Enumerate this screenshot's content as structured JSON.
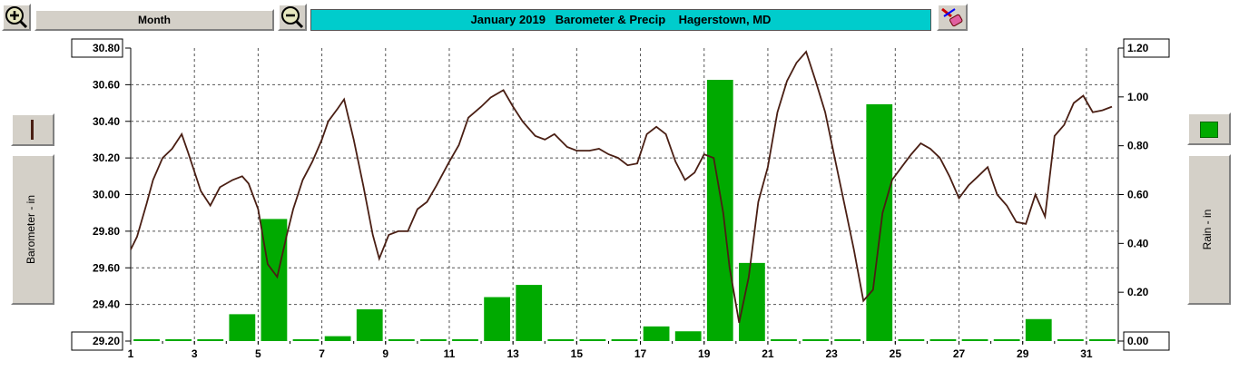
{
  "toolbar": {
    "period_label": "Month",
    "title": "January 2019   Barometer & Precip    Hagerstown, MD"
  },
  "icons": [
    "zoom-in-icon",
    "zoom-out-icon",
    "eraser-icon",
    "legend-line-swatch",
    "legend-bar-swatch"
  ],
  "colors": {
    "line": "#4a1f14",
    "bars": "#00aa00",
    "title_bg": "#00cccc",
    "panel": "#d4d0c8"
  },
  "left_axis_label": "Barometer - in",
  "right_axis_label": "Rain - in",
  "chart_data": {
    "type": "bar+line",
    "title": "January 2019   Barometer & Precip    Hagerstown, MD",
    "x_ticks": [
      "1",
      "3",
      "5",
      "7",
      "9",
      "11",
      "13",
      "15",
      "17",
      "19",
      "21",
      "23",
      "25",
      "27",
      "29",
      "31"
    ],
    "ylabel_left": "Barometer - in",
    "ylabel_right": "Rain - in",
    "y_left_ticks": [
      "29.20",
      "29.40",
      "29.60",
      "29.80",
      "30.00",
      "30.20",
      "30.40",
      "30.60",
      "30.80"
    ],
    "y_right_ticks": [
      "0.00",
      "0.20",
      "0.40",
      "0.60",
      "0.80",
      "1.00",
      "1.20"
    ],
    "y_left_range": [
      29.2,
      30.8
    ],
    "y_right_range": [
      0,
      1.2
    ],
    "x_range": [
      1,
      32
    ],
    "grid": true,
    "series": [
      {
        "name": "Rain - in",
        "type": "bar",
        "x": [
          1,
          2,
          3,
          4,
          5,
          6,
          7,
          8,
          9,
          10,
          11,
          12,
          13,
          14,
          15,
          16,
          17,
          18,
          19,
          20,
          21,
          22,
          23,
          24,
          25,
          26,
          27,
          28,
          29,
          30,
          31
        ],
        "values": [
          0,
          0,
          0,
          0.11,
          0.5,
          0,
          0.02,
          0.13,
          0,
          0,
          0,
          0.18,
          0.23,
          0,
          0,
          0,
          0.06,
          0.04,
          1.07,
          0.32,
          0,
          0,
          0,
          0.97,
          0,
          0,
          0,
          0,
          0.09,
          0,
          0
        ]
      },
      {
        "name": "Barometer - in",
        "type": "line",
        "x": [
          1.0,
          1.2,
          1.5,
          1.7,
          2.0,
          2.3,
          2.6,
          2.8,
          3.2,
          3.5,
          3.8,
          4.2,
          4.5,
          4.7,
          5.0,
          5.3,
          5.6,
          5.9,
          6.1,
          6.4,
          6.7,
          7.0,
          7.2,
          7.5,
          7.7,
          8.0,
          8.3,
          8.6,
          8.8,
          9.1,
          9.4,
          9.7,
          10.0,
          10.3,
          10.6,
          11.0,
          11.3,
          11.6,
          12.0,
          12.3,
          12.7,
          13.0,
          13.3,
          13.7,
          14.0,
          14.3,
          14.7,
          15.0,
          15.4,
          15.7,
          16.0,
          16.3,
          16.6,
          16.9,
          17.2,
          17.5,
          17.8,
          18.1,
          18.4,
          18.7,
          19.0,
          19.3,
          19.6,
          19.8,
          20.1,
          20.4,
          20.7,
          21.0,
          21.3,
          21.6,
          21.9,
          22.2,
          22.5,
          22.8,
          23.1,
          23.4,
          23.7,
          24.0,
          24.3,
          24.6,
          24.9,
          25.2,
          25.5,
          25.8,
          26.1,
          26.4,
          26.7,
          27.0,
          27.3,
          27.6,
          27.9,
          28.2,
          28.5,
          28.8,
          29.1,
          29.4,
          29.7,
          30.0,
          30.3,
          30.6,
          30.9,
          31.2,
          31.5,
          31.8
        ],
        "values": [
          29.7,
          29.77,
          29.95,
          30.08,
          30.2,
          30.25,
          30.33,
          30.23,
          30.02,
          29.94,
          30.04,
          30.08,
          30.1,
          30.06,
          29.92,
          29.62,
          29.55,
          29.78,
          29.92,
          30.08,
          30.18,
          30.3,
          30.4,
          30.47,
          30.52,
          30.3,
          30.05,
          29.78,
          29.65,
          29.78,
          29.8,
          29.8,
          29.92,
          29.96,
          30.05,
          30.18,
          30.27,
          30.42,
          30.48,
          30.53,
          30.57,
          30.48,
          30.4,
          30.32,
          30.3,
          30.33,
          30.26,
          30.24,
          30.24,
          30.25,
          30.22,
          30.2,
          30.16,
          30.17,
          30.33,
          30.37,
          30.33,
          30.18,
          30.08,
          30.12,
          30.22,
          30.2,
          29.9,
          29.6,
          29.3,
          29.55,
          29.96,
          30.15,
          30.45,
          30.62,
          30.72,
          30.78,
          30.62,
          30.45,
          30.2,
          29.95,
          29.7,
          29.42,
          29.48,
          29.9,
          30.08,
          30.15,
          30.22,
          30.28,
          30.25,
          30.2,
          30.1,
          29.98,
          30.05,
          30.1,
          30.15,
          30.0,
          29.94,
          29.85,
          29.84,
          30.0,
          29.88,
          30.32,
          30.38,
          30.5,
          30.54,
          30.45,
          30.46,
          30.48
        ]
      }
    ]
  }
}
